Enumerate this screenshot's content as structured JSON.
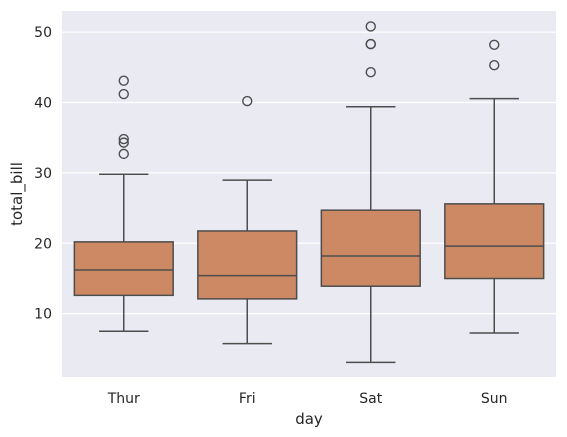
{
  "chart_data": {
    "type": "box",
    "title": "",
    "xlabel": "day",
    "ylabel": "total_bill",
    "categories": [
      "Thur",
      "Fri",
      "Sat",
      "Sun"
    ],
    "ylim": [
      1.0,
      53.0
    ],
    "yticks": [
      10,
      20,
      30,
      40,
      50
    ],
    "grid": true,
    "box_color": "#CC8963",
    "edge_color": "#4d4d4d",
    "plot_background": "#EAEAF2",
    "boxes": [
      {
        "category": "Thur",
        "whisker_low": 7.5,
        "q1": 12.6,
        "median": 16.2,
        "q3": 20.2,
        "whisker_high": 29.8,
        "outliers": [
          32.7,
          34.3,
          34.8,
          41.2,
          43.1
        ]
      },
      {
        "category": "Fri",
        "whisker_low": 5.75,
        "q1": 12.1,
        "median": 15.4,
        "q3": 21.75,
        "whisker_high": 28.97,
        "outliers": [
          40.2
        ]
      },
      {
        "category": "Sat",
        "whisker_low": 3.07,
        "q1": 13.9,
        "median": 18.2,
        "q3": 24.7,
        "whisker_high": 39.4,
        "outliers": [
          44.3,
          48.3,
          48.3,
          50.8
        ]
      },
      {
        "category": "Sun",
        "whisker_low": 7.25,
        "q1": 14.99,
        "median": 19.6,
        "q3": 25.6,
        "whisker_high": 40.55,
        "outliers": [
          45.3,
          48.2
        ]
      }
    ]
  }
}
